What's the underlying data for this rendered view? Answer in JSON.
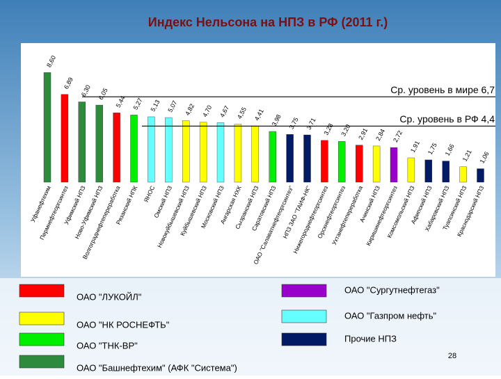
{
  "chart_data": {
    "type": "bar",
    "title": "Индекс Нельсона на НПЗ в РФ (2011 г.)",
    "categories": [
      "Уфанефтехим",
      "Пермнефтеоргсинтез",
      "Уфимский НПЗ",
      "Ново-Уфимский НПЗ",
      "Волгограднефтепереработка",
      "Рязанский НПК",
      "ЯНОС",
      "Омский НПЗ",
      "Новокуйбышевский НПЗ",
      "Куйбышевский НПЗ",
      "Московский НПЗ",
      "Ангарская НХК",
      "Сызранский НПЗ",
      "Саратовский НПЗ",
      "ОАО \"Салаватнефтеоргсинтез\"",
      "НПЗ ЗАО \"ТАИФ-НК\"",
      "Нижегороднефтеоргсинтез",
      "Орскнефтеоргсинтез",
      "Ухтанефтепереработка",
      "Ачинский НПЗ",
      "Киришинефтеоргсинтез",
      "Комсомольский НПЗ",
      "Афипский НПЗ",
      "Хабаровский НПЗ",
      "Туапсинский НПЗ",
      "Краснодарский НПЗ"
    ],
    "values": [
      8.6,
      6.89,
      6.3,
      6.05,
      5.44,
      5.27,
      5.13,
      5.07,
      4.82,
      4.7,
      4.67,
      4.55,
      4.41,
      3.98,
      3.75,
      3.71,
      3.28,
      3.2,
      2.91,
      2.84,
      2.72,
      1.91,
      1.75,
      1.66,
      1.21,
      1.06
    ],
    "value_labels": [
      "8,60",
      "6,89",
      "6,30",
      "6,05",
      "5,44",
      "5,27",
      "5,13",
      "5,07",
      "4,82",
      "4,70",
      "4,67",
      "4,55",
      "4,41",
      "3,98",
      "3,75",
      "3,71",
      "3,28",
      "3,20",
      "2,91",
      "2,84",
      "2,72",
      "1,91",
      "1,75",
      "1,66",
      "1,21",
      "1,06"
    ],
    "colors": [
      "#2e8b3e",
      "#ff0000",
      "#2e8b3e",
      "#2e8b3e",
      "#ff0000",
      "#00ee00",
      "#66ffff",
      "#66ffff",
      "#ffff00",
      "#ffff00",
      "#66ffff",
      "#ffff00",
      "#ffff00",
      "#00ee00",
      "#001a66",
      "#001a66",
      "#ff0000",
      "#00ee00",
      "#ff0000",
      "#ffff00",
      "#9900cc",
      "#ffff00",
      "#001a66",
      "#001a66",
      "#ffff00",
      "#001a66"
    ],
    "ylim": [
      0,
      9
    ],
    "reference_lines": [
      {
        "value": 6.7,
        "label": "Ср. уровень в мире 6,7"
      },
      {
        "value": 4.4,
        "label": "Ср. уровень в РФ 4,4"
      }
    ],
    "legend": [
      {
        "name": "ОАО \"ЛУКОЙЛ\"",
        "color": "#ff0000"
      },
      {
        "name": "ОАО \"НК РОСНЕФТЬ\"",
        "color": "#ffff00"
      },
      {
        "name": "ОАО \"ТНК-BP\"",
        "color": "#00ee00"
      },
      {
        "name": "ОАО \"Башнефтехим\" (АФК \"Система\")",
        "color": "#2e8b3e"
      },
      {
        "name": "ОАО \"Сургутнефтегаз\"",
        "color": "#9900cc"
      },
      {
        "name": "ОАО \"Газпром нефть\"",
        "color": "#66ffff"
      },
      {
        "name": "Прочие НПЗ",
        "color": "#001a66"
      }
    ],
    "page_number": "28"
  }
}
